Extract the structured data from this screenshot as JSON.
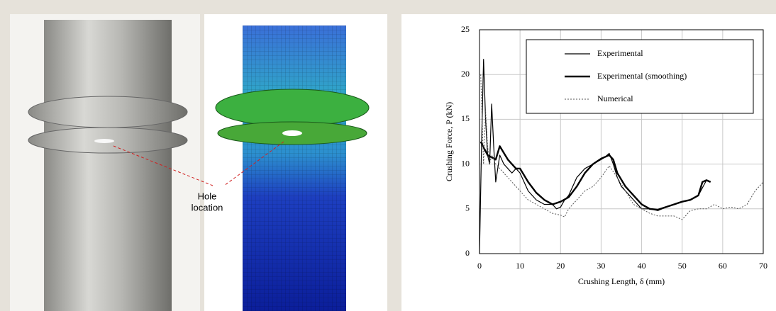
{
  "figure": {
    "annotation": [
      "Hole",
      "location"
    ]
  },
  "chart_data": {
    "type": "line",
    "xlabel": "Crushing Length, δ (mm)",
    "ylabel": "Crushing Force, P (kN)",
    "xlim": [
      0,
      70
    ],
    "xticks": [
      0,
      10,
      20,
      30,
      40,
      50,
      60,
      70
    ],
    "ylim": [
      0,
      25
    ],
    "yticks": [
      0,
      5,
      10,
      15,
      20,
      25
    ],
    "grid": true,
    "legend": "upper right",
    "series": [
      {
        "name": "Experimental",
        "color": "#000000",
        "style": "solid",
        "width": 1.2,
        "x": [
          0,
          0.5,
          1,
          1.5,
          2,
          2.5,
          3,
          3.5,
          4,
          5,
          6,
          7,
          8,
          9,
          10,
          11,
          12,
          14,
          16,
          18,
          19,
          20,
          21,
          22,
          24,
          26,
          28,
          30,
          31,
          32,
          33,
          34,
          35,
          36,
          38,
          40,
          42,
          44,
          46,
          48,
          50,
          52,
          54,
          56,
          57
        ],
        "values": [
          0,
          12,
          21.7,
          15,
          11,
          10,
          16.7,
          12,
          8,
          11,
          10,
          9.5,
          9,
          9.5,
          9,
          8,
          7,
          6,
          5.5,
          5.5,
          5,
          5.2,
          6,
          6.5,
          8.5,
          9.5,
          10,
          10.5,
          10.8,
          11.2,
          10,
          8.5,
          7.5,
          7,
          6,
          5,
          5,
          4.8,
          5.2,
          5.5,
          5.8,
          6,
          6.5,
          8.2,
          8
        ]
      },
      {
        "name": "Experimental (smoothing)",
        "color": "#000000",
        "style": "solid",
        "width": 2.4,
        "x": [
          0.3,
          2,
          4,
          5,
          7,
          9,
          10,
          12,
          14,
          16,
          18,
          20,
          22,
          24,
          26,
          28,
          30,
          32,
          33,
          34,
          36,
          38,
          40,
          42,
          44,
          46,
          48,
          50,
          52,
          54,
          55,
          56,
          57
        ],
        "values": [
          12.5,
          11,
          10.5,
          12,
          10.5,
          9.5,
          9.5,
          8,
          6.8,
          6,
          5.5,
          5.8,
          6.3,
          7.5,
          9,
          10,
          10.6,
          11,
          10.5,
          9,
          7.5,
          6.5,
          5.5,
          5,
          4.9,
          5.2,
          5.5,
          5.8,
          6,
          6.5,
          8,
          8.2,
          8
        ]
      },
      {
        "name": "Numerical",
        "color": "#555555",
        "style": "dotted",
        "width": 1,
        "x": [
          0.3,
          1,
          1.5,
          2,
          2.5,
          3,
          4,
          6,
          8,
          10,
          12,
          14,
          16,
          18,
          20,
          21,
          22,
          24,
          26,
          28,
          30,
          32,
          34,
          36,
          38,
          40,
          42,
          44,
          46,
          48,
          50,
          52,
          54,
          56,
          58,
          60,
          62,
          64,
          66,
          68,
          70
        ],
        "values": [
          20,
          10,
          16,
          12,
          10,
          11,
          10,
          9,
          8,
          7,
          6,
          5.5,
          5,
          4.5,
          4.3,
          4.1,
          5,
          6,
          7,
          7.5,
          8.5,
          9.8,
          8.5,
          7,
          5.5,
          5,
          4.5,
          4.2,
          4.2,
          4.2,
          3.8,
          4.8,
          5,
          5,
          5.5,
          5,
          5.2,
          5,
          5.5,
          7,
          8
        ]
      }
    ]
  }
}
